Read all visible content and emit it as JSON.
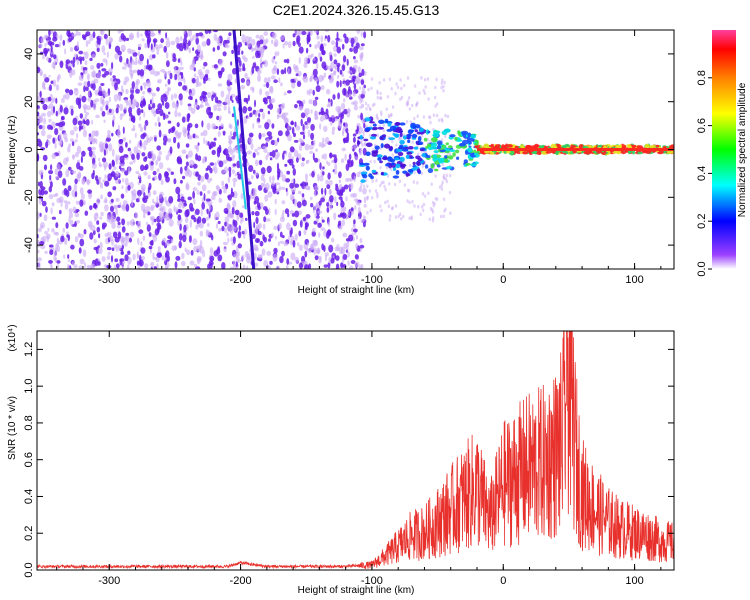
{
  "title": "C2E1.2024.326.15.45.G13",
  "colors": {
    "spectrogram_points": "#6a1ee8",
    "spectrogram_light": "#c9a8f5",
    "snr_line": "#e8312c",
    "colorbar": [
      "#ffffff",
      "#7f00ff",
      "#0000ff",
      "#00ffff",
      "#00ff00",
      "#ffff00",
      "#ff8000",
      "#ff0000",
      "#ff00ff"
    ]
  },
  "chart_data": [
    {
      "type": "heatmap",
      "title": "",
      "xlabel": "Height of straight line (km)",
      "ylabel": "Frequency (Hz)",
      "xlim": [
        -355,
        130
      ],
      "ylim": [
        -50,
        50
      ],
      "x_ticks": [
        "-300",
        "-200",
        "-100",
        "0",
        "100"
      ],
      "x_tick_values": [
        -300,
        -200,
        -100,
        0,
        100
      ],
      "y_ticks": [
        "-40",
        "-20",
        "0",
        "20",
        "40"
      ],
      "y_tick_values": [
        -40,
        -20,
        0,
        20,
        40
      ],
      "colorbar": {
        "label": "Normalized spectral amplitude",
        "range": [
          0,
          1
        ],
        "ticks": [
          "0.0",
          "0.2",
          "0.4",
          "0.6",
          "0.8"
        ],
        "tick_values": [
          0,
          0.2,
          0.4,
          0.6,
          0.8
        ]
      },
      "features": {
        "noise_region_x": [
          -355,
          -105
        ],
        "diagonal_track": [
          [
            -205,
            20
          ],
          [
            -190,
            -50
          ]
        ],
        "signal_band_x": [
          -110,
          130
        ],
        "signal_band_center_hz": 0
      }
    },
    {
      "type": "line",
      "title": "",
      "xlabel": "Height of straight line (km)",
      "ylabel": "SNR (10 * v/v)",
      "y_multiplier": "(x10⁴)",
      "xlim": [
        -355,
        130
      ],
      "ylim": [
        0,
        1.3
      ],
      "x_ticks": [
        "-300",
        "-200",
        "-100",
        "0",
        "100"
      ],
      "x_tick_values": [
        -300,
        -200,
        -100,
        0,
        100
      ],
      "y_ticks": [
        "0.0",
        "0.2",
        "0.4",
        "0.6",
        "0.8",
        "1.0",
        "1.2"
      ],
      "y_tick_values": [
        0,
        0.2,
        0.4,
        0.6,
        0.8,
        1.0,
        1.2
      ],
      "series": [
        {
          "x": [
            -355,
            -300,
            -250,
            -210,
            -200,
            -180,
            -150,
            -120,
            -100,
            -90,
            -80,
            -70,
            -60,
            -50,
            -40,
            -30,
            -20,
            -10,
            0,
            10,
            20,
            30,
            40,
            45,
            50,
            55,
            60,
            70,
            80,
            90,
            100,
            110,
            120,
            130
          ],
          "y": [
            0.02,
            0.02,
            0.02,
            0.02,
            0.04,
            0.02,
            0.02,
            0.02,
            0.03,
            0.08,
            0.14,
            0.2,
            0.22,
            0.28,
            0.35,
            0.42,
            0.48,
            0.3,
            0.5,
            0.55,
            0.6,
            0.62,
            0.68,
            0.75,
            1.25,
            0.7,
            0.45,
            0.35,
            0.28,
            0.24,
            0.22,
            0.2,
            0.17,
            0.16
          ]
        }
      ]
    }
  ]
}
